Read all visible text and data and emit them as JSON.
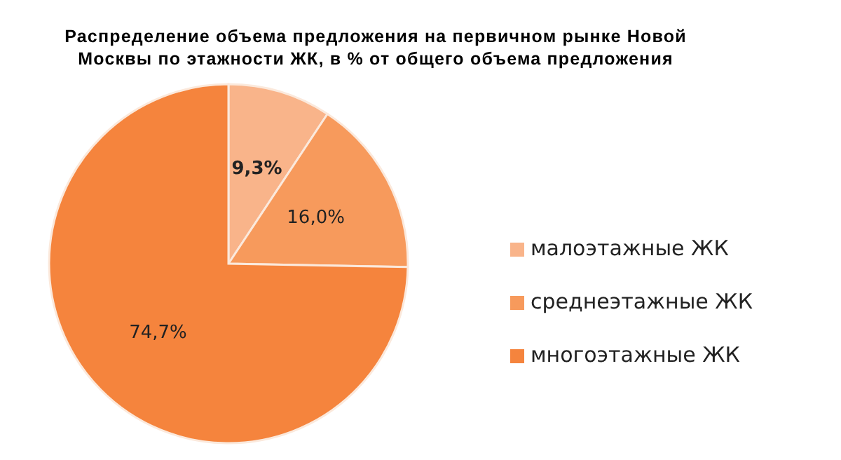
{
  "chart_data": {
    "type": "pie",
    "title": "Распределение объема предложения на первичном рынке Новой Москвы по этажности ЖК, в % от общего объема предложения",
    "categories": [
      "малоэтажные ЖК",
      "среднеэтажные ЖК",
      "многоэтажные ЖК"
    ],
    "values": [
      9.3,
      16.0,
      74.7
    ],
    "value_labels": [
      "9,3%",
      "16,0%",
      "74,7%"
    ],
    "colors": [
      "#f9b48a",
      "#f79a5c",
      "#f5843d"
    ],
    "legend": "right"
  }
}
